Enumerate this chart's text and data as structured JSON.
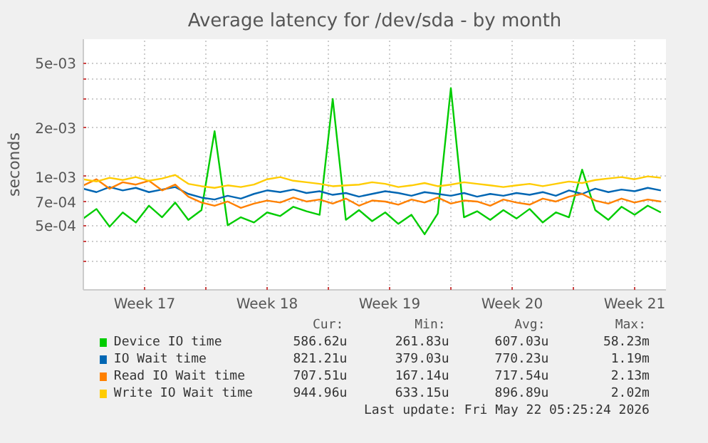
{
  "chart_data": {
    "type": "line",
    "title": "Average latency for /dev/sda - by month",
    "ylabel": "seconds",
    "log": "y",
    "xlim": [
      "2026-04-20T00:00",
      "2026-05-23T07:00"
    ],
    "ylim": [
      0.0002,
      0.007
    ],
    "xticks": [
      {
        "value": "2026-04-20T00:00",
        "label": null
      },
      {
        "value": "2026-04-23T12:00",
        "label": "Week 17"
      },
      {
        "value": "2026-04-27T00:00",
        "label": null
      },
      {
        "value": "2026-04-30T12:00",
        "label": "Week 18"
      },
      {
        "value": "2026-05-04T00:00",
        "label": null
      },
      {
        "value": "2026-05-07T12:00",
        "label": "Week 19"
      },
      {
        "value": "2026-05-11T00:00",
        "label": null
      },
      {
        "value": "2026-05-14T12:00",
        "label": "Week 20"
      },
      {
        "value": "2026-05-18T00:00",
        "label": null
      },
      {
        "value": "2026-05-21T12:00",
        "label": "Week 21"
      }
    ],
    "yticks": [
      {
        "value": 0.0003,
        "label": null
      },
      {
        "value": 0.0004,
        "label": null
      },
      {
        "value": 0.0005,
        "label": "5e-04"
      },
      {
        "value": 0.0007,
        "label": "7e-04"
      },
      {
        "value": 0.001,
        "label": "1e-03"
      },
      {
        "value": 0.002,
        "label": "2e-03"
      },
      {
        "value": 0.003,
        "label": null
      },
      {
        "value": 0.004,
        "label": null
      },
      {
        "value": 0.005,
        "label": "5e-03"
      }
    ],
    "grid": true,
    "legend": "bottom",
    "line_style": "solid",
    "x": [
      "2026-04-20T00:00",
      "2026-04-20T18:00",
      "2026-04-21T12:00",
      "2026-04-22T06:00",
      "2026-04-23T00:00",
      "2026-04-23T18:00",
      "2026-04-24T12:00",
      "2026-04-25T06:00",
      "2026-04-26T00:00",
      "2026-04-26T18:00",
      "2026-04-27T12:00",
      "2026-04-28T06:00",
      "2026-04-29T00:00",
      "2026-04-29T18:00",
      "2026-04-30T12:00",
      "2026-05-01T06:00",
      "2026-05-02T00:00",
      "2026-05-02T18:00",
      "2026-05-03T12:00",
      "2026-05-04T06:00",
      "2026-05-05T00:00",
      "2026-05-05T18:00",
      "2026-05-06T12:00",
      "2026-05-07T06:00",
      "2026-05-08T00:00",
      "2026-05-08T18:00",
      "2026-05-09T12:00",
      "2026-05-10T06:00",
      "2026-05-11T00:00",
      "2026-05-11T18:00",
      "2026-05-12T12:00",
      "2026-05-13T06:00",
      "2026-05-14T00:00",
      "2026-05-14T18:00",
      "2026-05-15T12:00",
      "2026-05-16T06:00",
      "2026-05-17T00:00",
      "2026-05-17T18:00",
      "2026-05-18T12:00",
      "2026-05-19T06:00",
      "2026-05-20T00:00",
      "2026-05-20T18:00",
      "2026-05-21T12:00",
      "2026-05-22T06:00",
      "2026-05-23T00:00"
    ],
    "series": [
      {
        "name": "Device IO time",
        "color": "#00cc00",
        "values": [
          0.00055,
          0.00063,
          0.00049,
          0.0006,
          0.00052,
          0.00066,
          0.00056,
          0.00069,
          0.00054,
          0.00062,
          0.0019,
          0.0005,
          0.00056,
          0.00052,
          0.0006,
          0.00057,
          0.00065,
          0.00061,
          0.00058,
          0.003,
          0.00054,
          0.00062,
          0.00053,
          0.0006,
          0.00051,
          0.00058,
          0.00044,
          0.00059,
          0.0035,
          0.00056,
          0.00061,
          0.00054,
          0.00062,
          0.00055,
          0.00063,
          0.00052,
          0.0006,
          0.00056,
          0.0011,
          0.00062,
          0.00054,
          0.00065,
          0.00058,
          0.00066,
          0.0006
        ]
      },
      {
        "name": "IO Wait time",
        "color": "#0066b3",
        "values": [
          0.00084,
          0.0008,
          0.00086,
          0.00082,
          0.00085,
          0.0008,
          0.00083,
          0.00086,
          0.00078,
          0.00074,
          0.00072,
          0.00076,
          0.00073,
          0.00078,
          0.00082,
          0.0008,
          0.00083,
          0.00079,
          0.00081,
          0.00077,
          0.00079,
          0.00075,
          0.00078,
          0.00081,
          0.00079,
          0.00076,
          0.0008,
          0.00078,
          0.00076,
          0.00079,
          0.00075,
          0.00078,
          0.00076,
          0.00079,
          0.00077,
          0.0008,
          0.00076,
          0.00082,
          0.00078,
          0.00084,
          0.0008,
          0.00083,
          0.00081,
          0.00085,
          0.00082
        ]
      },
      {
        "name": "Read IO Wait time",
        "color": "#ff8000",
        "values": [
          0.00088,
          0.00096,
          0.00084,
          0.00092,
          0.00089,
          0.00094,
          0.00082,
          0.00089,
          0.00075,
          0.00069,
          0.00066,
          0.0007,
          0.00064,
          0.00068,
          0.00071,
          0.00069,
          0.00074,
          0.0007,
          0.00072,
          0.00068,
          0.00073,
          0.00066,
          0.00071,
          0.0007,
          0.00067,
          0.00072,
          0.00069,
          0.00074,
          0.00068,
          0.00071,
          0.0007,
          0.00066,
          0.00072,
          0.00069,
          0.00067,
          0.00073,
          0.0007,
          0.00075,
          0.00078,
          0.00071,
          0.00068,
          0.00073,
          0.00069,
          0.00072,
          0.0007
        ]
      },
      {
        "name": "Write IO Wait time",
        "color": "#ffcc00",
        "values": [
          0.00096,
          0.00093,
          0.00098,
          0.00095,
          0.00099,
          0.00094,
          0.00097,
          0.00102,
          0.0009,
          0.00087,
          0.00085,
          0.00088,
          0.00086,
          0.00089,
          0.00096,
          0.00099,
          0.00094,
          0.00092,
          0.0009,
          0.00087,
          0.00088,
          0.00089,
          0.00092,
          0.0009,
          0.00086,
          0.00088,
          0.00091,
          0.00087,
          0.00089,
          0.00092,
          0.0009,
          0.00088,
          0.00086,
          0.00088,
          0.0009,
          0.00087,
          0.0009,
          0.00093,
          0.00091,
          0.00095,
          0.00097,
          0.00099,
          0.00096,
          0.001,
          0.00098
        ]
      }
    ],
    "annotations": [
      "Cur:",
      "Min:",
      "Avg:",
      "Max:",
      "586.62u",
      "261.83u",
      "607.03u",
      "58.23m",
      "821.21u",
      "379.03u",
      "770.23u",
      "1.19m",
      "707.51u",
      "167.14u",
      "717.54u",
      "2.13m",
      "944.96u",
      "633.15u",
      "896.89u",
      "2.02m",
      "Last update: Fri May 22 05:25:24 2026"
    ]
  }
}
